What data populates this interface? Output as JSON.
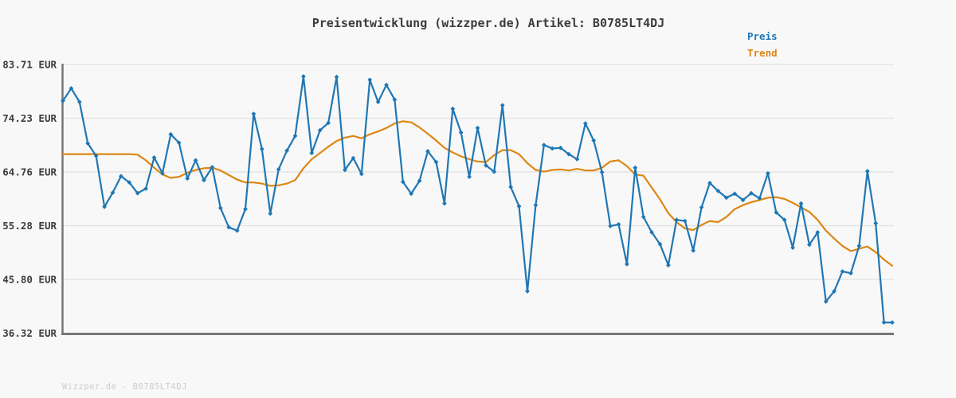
{
  "title": "Preisentwicklung (wizzper.de) Artikel: B0785LT4DJ",
  "legend": {
    "preis_label": "Preis",
    "trend_label": "Trend"
  },
  "watermark": "Wizzper.de - B0785LT4DJ",
  "colors": {
    "preis": "#1f77b4",
    "trend": "#dd8714",
    "grid": "#e2e2e2",
    "axis": "#767676",
    "title_text": "#3c3c3c",
    "tick_text": "#3c3c3c",
    "watermark_text": "#cccccc",
    "background": "#f8f8f8"
  },
  "chart_data": {
    "type": "line",
    "title": "Preisentwicklung (wizzper.de) Artikel: B0785LT4DJ",
    "xlabel": "",
    "ylabel": "EUR",
    "grid": "horizontal",
    "legend_position": "top-right",
    "ylim": [
      36.32,
      83.71
    ],
    "yticks": [
      {
        "label": "83.71 EUR",
        "value": 83.71
      },
      {
        "label": "74.23 EUR",
        "value": 74.23
      },
      {
        "label": "64.76 EUR",
        "value": 64.76
      },
      {
        "label": "55.28 EUR",
        "value": 55.28
      },
      {
        "label": "45.80 EUR",
        "value": 45.8
      },
      {
        "label": "36.32 EUR",
        "value": 36.32
      }
    ],
    "series": [
      {
        "name": "Preis",
        "color_key": "preis",
        "marker": true,
        "values": [
          77.3,
          79.5,
          77.1,
          69.8,
          67.6,
          58.6,
          61.1,
          64.0,
          62.9,
          61.0,
          61.8,
          67.3,
          64.5,
          71.4,
          69.9,
          63.6,
          66.8,
          63.3,
          65.6,
          58.4,
          55.0,
          54.4,
          58.2,
          75.0,
          68.8,
          57.4,
          65.2,
          68.5,
          71.1,
          81.6,
          68.1,
          72.1,
          73.4,
          81.5,
          65.1,
          67.2,
          64.4,
          81.0,
          77.1,
          80.1,
          77.5,
          63.0,
          60.9,
          63.2,
          68.4,
          66.5,
          59.2,
          75.9,
          71.7,
          63.9,
          72.5,
          65.9,
          64.8,
          76.5,
          62.1,
          58.7,
          43.7,
          58.9,
          69.5,
          68.9,
          69.0,
          67.9,
          67.0,
          73.3,
          70.3,
          64.7,
          55.2,
          55.5,
          48.5,
          65.5,
          56.8,
          54.1,
          52.0,
          48.3,
          56.3,
          56.1,
          50.9,
          58.5,
          62.8,
          61.4,
          60.2,
          60.9,
          59.8,
          61.0,
          60.1,
          64.5,
          57.6,
          56.3,
          51.4,
          59.2,
          51.9,
          54.1,
          41.9,
          43.7,
          47.2,
          46.9,
          51.7,
          64.9,
          55.7,
          38.2,
          38.2
        ]
      },
      {
        "name": "Trend",
        "color_key": "trend",
        "marker": false,
        "values": [
          67.9,
          67.9,
          67.9,
          67.9,
          67.9,
          67.9,
          67.9,
          67.9,
          67.9,
          67.8,
          66.8,
          65.5,
          64.3,
          63.7,
          63.9,
          64.6,
          65.1,
          65.4,
          65.5,
          65.0,
          64.2,
          63.4,
          62.9,
          62.9,
          62.7,
          62.3,
          62.4,
          62.7,
          63.3,
          65.4,
          67.0,
          68.1,
          69.2,
          70.2,
          70.8,
          71.1,
          70.7,
          71.4,
          71.9,
          72.5,
          73.3,
          73.7,
          73.5,
          72.6,
          71.5,
          70.3,
          69.0,
          68.2,
          67.5,
          67.0,
          66.6,
          66.5,
          67.7,
          68.6,
          68.6,
          67.9,
          66.3,
          65.1,
          64.8,
          65.1,
          65.2,
          65.0,
          65.3,
          65.0,
          65.0,
          65.5,
          66.6,
          66.8,
          65.8,
          64.3,
          64.1,
          62.0,
          59.9,
          57.5,
          55.9,
          54.8,
          54.5,
          55.4,
          56.1,
          55.9,
          56.8,
          58.2,
          58.9,
          59.4,
          59.8,
          60.2,
          60.3,
          60.0,
          59.3,
          58.5,
          57.7,
          56.3,
          54.4,
          53.0,
          51.7,
          50.8,
          51.2,
          51.6,
          50.6,
          49.3,
          48.2
        ]
      }
    ]
  }
}
